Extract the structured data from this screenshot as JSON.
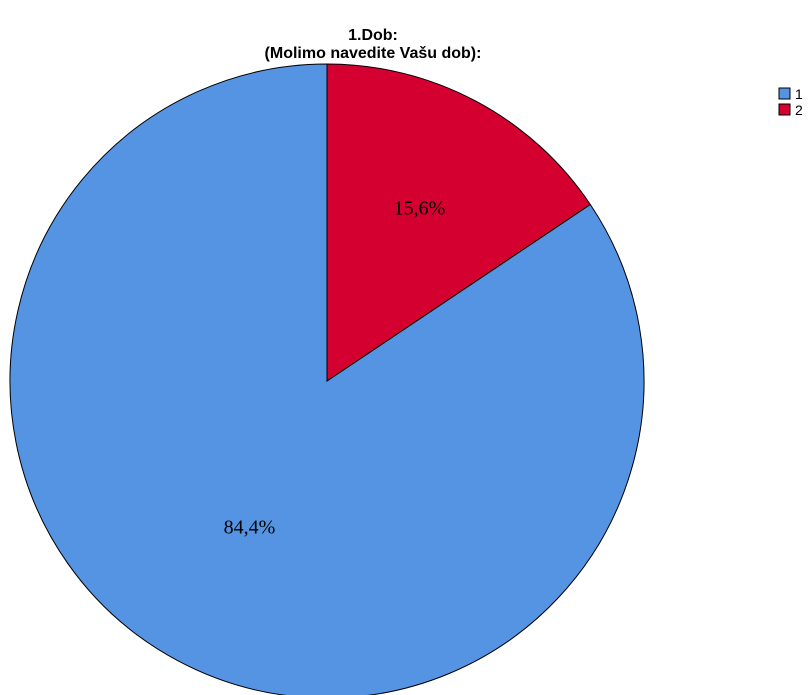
{
  "chart_data": {
    "type": "pie",
    "title_lines": [
      "1.Dob:",
      "(Molimo navedite Vašu dob):"
    ],
    "categories": [
      "1",
      "2"
    ],
    "values": [
      84.4,
      15.6
    ],
    "data_labels": [
      "84,4%",
      "15,6%"
    ],
    "colors": [
      "#5594e3",
      "#d30030"
    ],
    "legend": {
      "placement": "top-right",
      "entries": [
        "1",
        "2"
      ]
    },
    "start_angle_deg": 0,
    "direction": "counterclockwise",
    "outline_color": "#000000"
  }
}
